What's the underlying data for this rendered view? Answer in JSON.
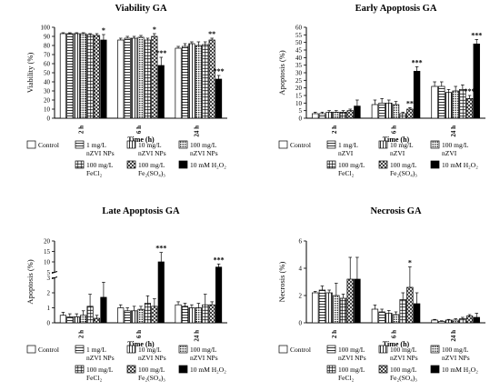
{
  "colors": {
    "black": "#000000",
    "white": "#ffffff",
    "errbar": "#000000"
  },
  "legend_labels_a": {
    "control": "Control",
    "nzvi1": [
      "1 mg/L",
      "nZVI NPs"
    ],
    "nzvi10": [
      "10 mg/L",
      "nZVI NPs"
    ],
    "nzvi100": [
      "100 mg/L",
      "nZVI NPs"
    ],
    "fecl2": [
      "100 mg/L",
      "FeCl₂"
    ],
    "fe2so4": [
      "100 mg/L",
      "Fe₂(SO₄)₃"
    ],
    "h2o2": "10 mM H₂O₂"
  },
  "legend_labels_b": {
    "control": "Control",
    "nzvi1": [
      "1 mg/L",
      "nZVI"
    ],
    "nzvi10": [
      "10 mg/L",
      "nZVI"
    ],
    "nzvi100": [
      "100 mg/L",
      "nZVI"
    ],
    "fecl2": [
      "100 mg/L",
      "FeCl₂"
    ],
    "fe2so4": [
      "100 mg/L",
      "Fe₂(SO₄)₃"
    ],
    "h2o2": "10 mM H₂O₂"
  },
  "legend_labels_c": {
    "control": "Control",
    "nzvi1": [
      "1 mg/L",
      "nZVI NPs"
    ],
    "nzvi10": [
      "10 mg/L",
      "nZVI NPs"
    ],
    "nzvi100": [
      "100 mg/L",
      "nZVI NPs"
    ],
    "fecl2": [
      "100 mg/L",
      "FeCl₂"
    ],
    "fe2so4": [
      "100 mg/L",
      "Fe₂(SO₄)₃"
    ],
    "h2o2": "10 mM H₂O₂"
  },
  "legend_labels_d": {
    "control": "Control",
    "nzvi1": [
      "100 mg/L",
      "nZVI NPs"
    ],
    "nzvi10": [
      "100 mg/L",
      "nZVI NPs"
    ],
    "nzvi100": [
      "100 mg/L",
      "nZVI NPs"
    ],
    "fecl2": [
      "100 mg/L",
      "FeCl₂"
    ],
    "fe2so4": [
      "100 mg/L",
      "Fe₂(SO₄)₃"
    ],
    "h2o2": "10 mM H₂O₂"
  },
  "chart_data": [
    {
      "type": "bar",
      "title": "Viability GA",
      "xlabel": "Time (h)",
      "ylabel": "Viability (%)",
      "ylim": [
        0,
        100
      ],
      "yticks": [
        0,
        10,
        20,
        30,
        40,
        50,
        60,
        70,
        80,
        90,
        100
      ],
      "categories": [
        "2 h",
        "6 h",
        "24 h"
      ],
      "series": [
        {
          "name": "Control",
          "values": [
            93,
            86,
            77
          ],
          "errors": [
            1,
            2,
            2
          ]
        },
        {
          "name": "1 mg/L nZVI NPs",
          "values": [
            93,
            88,
            79
          ],
          "errors": [
            1,
            2,
            3
          ]
        },
        {
          "name": "10 mg/L nZVI NPs",
          "values": [
            93,
            88,
            82
          ],
          "errors": [
            1,
            2,
            2
          ]
        },
        {
          "name": "100 mg/L nZVI NPs",
          "values": [
            93,
            89,
            80
          ],
          "errors": [
            1,
            2,
            4
          ]
        },
        {
          "name": "100 mg/L FeCl2",
          "values": [
            92,
            86,
            81
          ],
          "errors": [
            1,
            2,
            3
          ]
        },
        {
          "name": "100 mg/L Fe2(SO4)3",
          "values": [
            91,
            90,
            86
          ],
          "errors": [
            2,
            3,
            2
          ]
        },
        {
          "name": "10 mM H2O2",
          "values": [
            86,
            58,
            43
          ],
          "errors": [
            6,
            9,
            4
          ]
        }
      ],
      "significance": [
        {
          "category": "2 h",
          "series": "10 mM H2O2",
          "label": "*"
        },
        {
          "category": "6 h",
          "series": "100 mg/L Fe2(SO4)3",
          "label": "*"
        },
        {
          "category": "6 h",
          "series": "10 mM H2O2",
          "label": "***"
        },
        {
          "category": "24 h",
          "series": "100 mg/L Fe2(SO4)3",
          "label": "**"
        },
        {
          "category": "24 h",
          "series": "10 mM H2O2",
          "label": "***"
        }
      ]
    },
    {
      "type": "bar",
      "title": "Early Apoptosis GA",
      "xlabel": "Time (h)",
      "ylabel": "Apoptosis (%)",
      "ylim": [
        0,
        60
      ],
      "yticks": [
        0,
        5,
        10,
        15,
        20,
        25,
        30,
        35,
        40,
        45,
        50,
        55,
        60
      ],
      "categories": [
        "2 h",
        "6 h",
        "24 h"
      ],
      "series": [
        {
          "name": "Control",
          "values": [
            3,
            9,
            21
          ],
          "errors": [
            1,
            3,
            3
          ]
        },
        {
          "name": "1 mg/L nZVI",
          "values": [
            3,
            10,
            21
          ],
          "errors": [
            1,
            3,
            3
          ]
        },
        {
          "name": "10 mg/L nZVI",
          "values": [
            4,
            10,
            17
          ],
          "errors": [
            1,
            2,
            2
          ]
        },
        {
          "name": "100 mg/L nZVI",
          "values": [
            4,
            9,
            18
          ],
          "errors": [
            1,
            2,
            3
          ]
        },
        {
          "name": "100 mg/L FeCl2",
          "values": [
            4,
            3,
            19
          ],
          "errors": [
            1,
            1,
            3
          ]
        },
        {
          "name": "100 mg/L Fe2(SO4)3",
          "values": [
            5,
            6,
            13
          ],
          "errors": [
            1,
            1,
            2
          ]
        },
        {
          "name": "10 mM H2O2",
          "values": [
            8,
            31,
            49
          ],
          "errors": [
            4,
            3,
            3
          ]
        }
      ],
      "significance": [
        {
          "category": "6 h",
          "series": "100 mg/L Fe2(SO4)3",
          "label": "**"
        },
        {
          "category": "6 h",
          "series": "10 mM H2O2",
          "label": "***"
        },
        {
          "category": "24 h",
          "series": "100 mg/L Fe2(SO4)3",
          "label": "***"
        },
        {
          "category": "24 h",
          "series": "10 mM H2O2",
          "label": "***"
        }
      ]
    },
    {
      "type": "bar",
      "title": "Late Apoptosis GA",
      "xlabel": "Time (h)",
      "ylabel": "Apoptosis (%)",
      "axis_break": [
        3,
        5
      ],
      "ylim": [
        0,
        20
      ],
      "yticks_lower": [
        0,
        1,
        2,
        3
      ],
      "yticks_upper": [
        5,
        10,
        15,
        20
      ],
      "categories": [
        "2 h",
        "6 h",
        "24 h"
      ],
      "series": [
        {
          "name": "Control",
          "values": [
            0.5,
            1.0,
            1.2
          ],
          "errors": [
            0.2,
            0.2,
            0.2
          ]
        },
        {
          "name": "1 mg/L nZVI NPs",
          "values": [
            0.4,
            0.8,
            1.1
          ],
          "errors": [
            0.2,
            0.2,
            0.2
          ]
        },
        {
          "name": "10 mg/L nZVI NPs",
          "values": [
            0.4,
            0.8,
            1.0
          ],
          "errors": [
            0.2,
            0.3,
            0.2
          ]
        },
        {
          "name": "100 mg/L nZVI NPs",
          "values": [
            0.5,
            0.9,
            1.0
          ],
          "errors": [
            0.3,
            0.2,
            0.3
          ]
        },
        {
          "name": "100 mg/L FeCl2",
          "values": [
            1.1,
            1.3,
            1.2
          ],
          "errors": [
            0.8,
            0.5,
            0.7
          ]
        },
        {
          "name": "100 mg/L Fe2(SO4)3",
          "values": [
            0.3,
            1.1,
            1.2
          ],
          "errors": [
            0.2,
            0.5,
            0.2
          ]
        },
        {
          "name": "10 mM H2O2",
          "values": [
            1.7,
            10,
            7.5
          ],
          "errors": [
            1.0,
            4.5,
            1.5
          ]
        }
      ],
      "significance": [
        {
          "category": "6 h",
          "series": "10 mM H2O2",
          "label": "***"
        },
        {
          "category": "24 h",
          "series": "10 mM H2O2",
          "label": "***"
        }
      ]
    },
    {
      "type": "bar",
      "title": "Necrosis GA",
      "xlabel": "Time (h)",
      "ylabel": "Necrosis (%)",
      "ylim": [
        0,
        6
      ],
      "yticks": [
        0,
        2,
        4,
        6
      ],
      "categories": [
        "2 h",
        "6 h",
        "24 h"
      ],
      "series": [
        {
          "name": "Control",
          "values": [
            2.2,
            1.0,
            0.2
          ],
          "errors": [
            0.1,
            0.3,
            0.05
          ]
        },
        {
          "name": "100 mg/L nZVI NPs (1)",
          "values": [
            2.4,
            0.8,
            0.1
          ],
          "errors": [
            0.3,
            0.2,
            0.05
          ]
        },
        {
          "name": "100 mg/L nZVI NPs (2)",
          "values": [
            2.2,
            0.7,
            0.2
          ],
          "errors": [
            0.2,
            0.2,
            0.05
          ]
        },
        {
          "name": "100 mg/L nZVI NPs (3)",
          "values": [
            2.0,
            0.6,
            0.2
          ],
          "errors": [
            0.9,
            0.2,
            0.1
          ]
        },
        {
          "name": "100 mg/L FeCl2",
          "values": [
            1.8,
            1.7,
            0.3
          ],
          "errors": [
            0.3,
            0.5,
            0.1
          ]
        },
        {
          "name": "100 mg/L Fe2(SO4)3",
          "values": [
            3.2,
            2.6,
            0.5
          ],
          "errors": [
            1.6,
            1.5,
            0.1
          ]
        },
        {
          "name": "10 mM H2O2",
          "values": [
            3.2,
            1.4,
            0.4
          ],
          "errors": [
            1.6,
            0.8,
            0.3
          ]
        }
      ],
      "significance": [
        {
          "category": "6 h",
          "series": "100 mg/L Fe2(SO4)3",
          "label": "*"
        }
      ]
    }
  ]
}
